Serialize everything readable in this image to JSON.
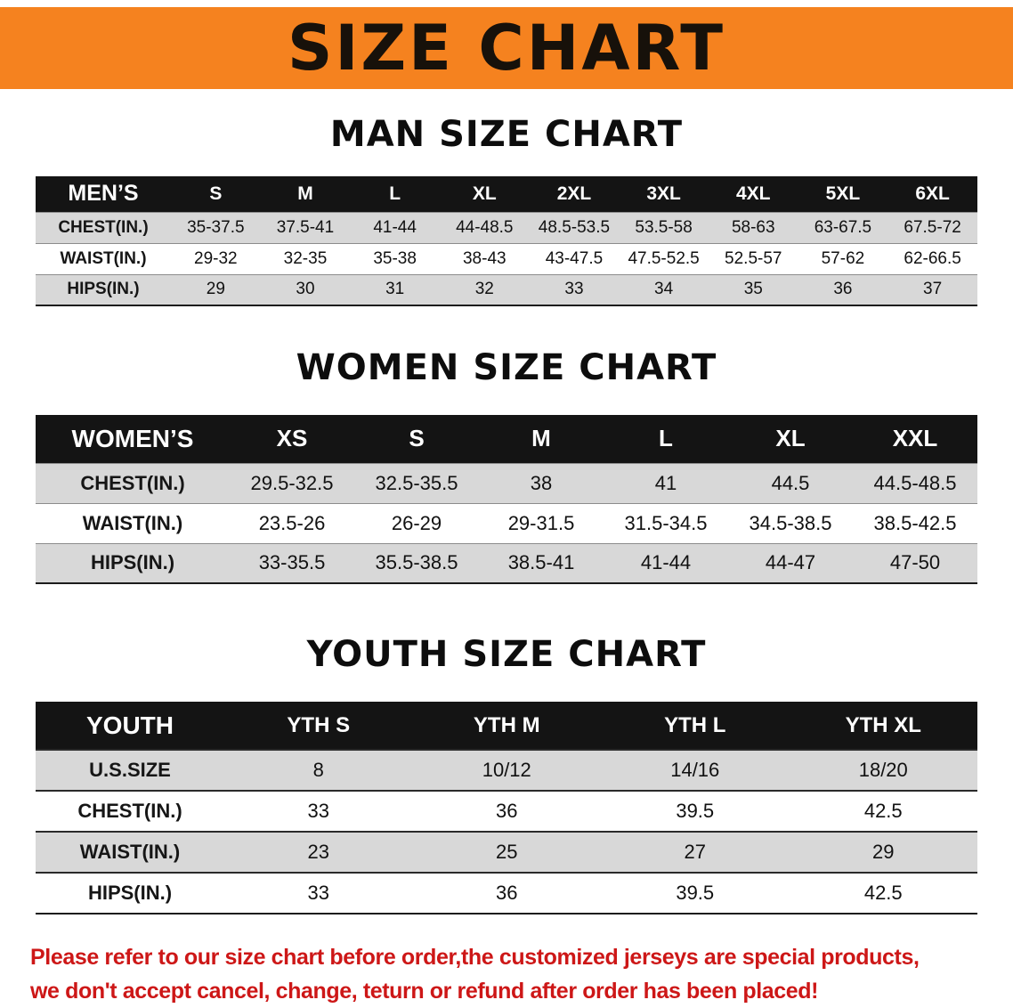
{
  "banner": {
    "title": "SIZE CHART"
  },
  "colors": {
    "banner_bg": "#f5821f",
    "table_header_bg": "#141414",
    "row_gray": "#d8d8d8",
    "notice_red": "#cd1717"
  },
  "men": {
    "heading": "MAN SIZE CHART",
    "table": {
      "header": [
        "MEN’S",
        "S",
        "M",
        "L",
        "XL",
        "2XL",
        "3XL",
        "4XL",
        "5XL",
        "6XL"
      ],
      "rows": [
        [
          "CHEST(IN.)",
          "35-37.5",
          "37.5-41",
          "41-44",
          "44-48.5",
          "48.5-53.5",
          "53.5-58",
          "58-63",
          "63-67.5",
          "67.5-72"
        ],
        [
          "WAIST(IN.)",
          "29-32",
          "32-35",
          "35-38",
          "38-43",
          "43-47.5",
          "47.5-52.5",
          "52.5-57",
          "57-62",
          "62-66.5"
        ],
        [
          "HIPS(IN.)",
          "29",
          "30",
          "31",
          "32",
          "33",
          "34",
          "35",
          "36",
          "37"
        ]
      ]
    }
  },
  "women": {
    "heading": "WOMEN SIZE CHART",
    "table": {
      "header": [
        "WOMEN’S",
        "XS",
        "S",
        "M",
        "L",
        "XL",
        "XXL"
      ],
      "rows": [
        [
          "CHEST(IN.)",
          "29.5-32.5",
          "32.5-35.5",
          "38",
          "41",
          "44.5",
          "44.5-48.5"
        ],
        [
          "WAIST(IN.)",
          "23.5-26",
          "26-29",
          "29-31.5",
          "31.5-34.5",
          "34.5-38.5",
          "38.5-42.5"
        ],
        [
          "HIPS(IN.)",
          "33-35.5",
          "35.5-38.5",
          "38.5-41",
          "41-44",
          "44-47",
          "47-50"
        ]
      ]
    }
  },
  "youth": {
    "heading": "YOUTH SIZE CHART",
    "table": {
      "header": [
        "YOUTH",
        "YTH S",
        "YTH M",
        "YTH L",
        "YTH XL"
      ],
      "rows": [
        [
          "U.S.SIZE",
          "8",
          "10/12",
          "14/16",
          "18/20"
        ],
        [
          "CHEST(IN.)",
          "33",
          "36",
          "39.5",
          "42.5"
        ],
        [
          "WAIST(IN.)",
          "23",
          "25",
          "27",
          "29"
        ],
        [
          "HIPS(IN.)",
          "33",
          "36",
          "39.5",
          "42.5"
        ]
      ]
    }
  },
  "footer": {
    "line1": "Please refer to our size chart before order,the customized jerseys are special products,",
    "line2": "we don't accept cancel, change, teturn or refund after order has been placed!"
  }
}
